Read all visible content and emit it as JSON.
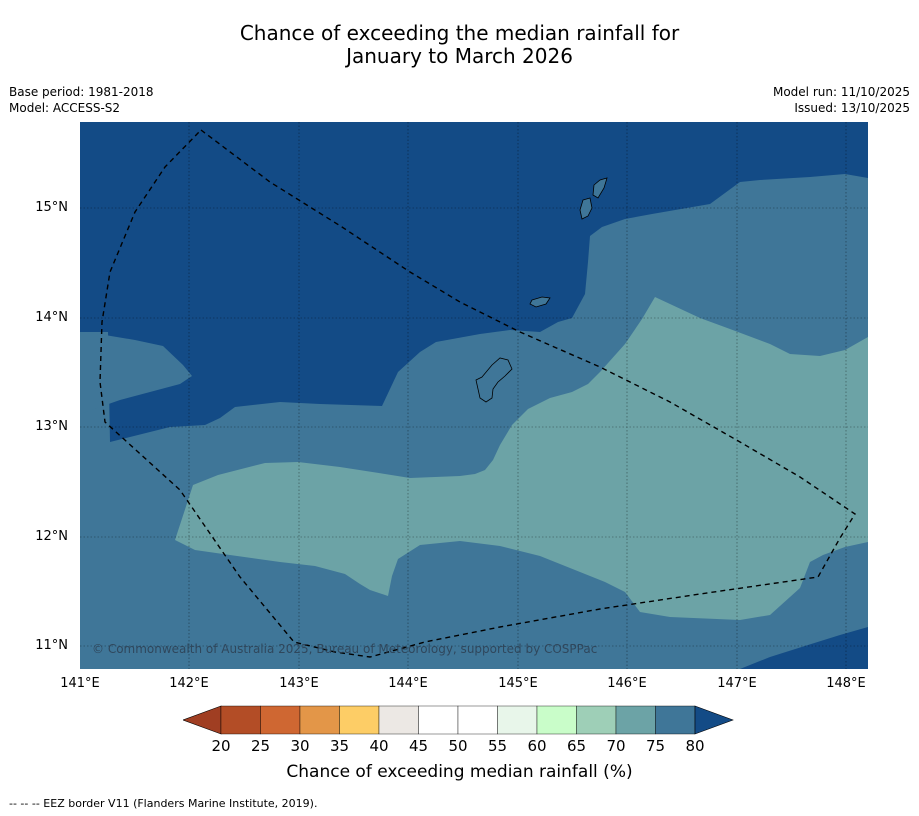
{
  "title_line1": "Chance of exceeding the median rainfall for",
  "title_line2": "January to March 2026",
  "meta_left": {
    "base_period": "Base period: 1981-2018",
    "model": "Model: ACCESS-S2"
  },
  "meta_right": {
    "model_run": "Model run: 11/10/2025",
    "issued": "Issued: 13/10/2025"
  },
  "map": {
    "lat_labels": [
      "15°N",
      "14°N",
      "13°N",
      "12°N",
      "11°N"
    ],
    "lon_labels": [
      "141°E",
      "142°E",
      "143°E",
      "144°E",
      "145°E",
      "146°E",
      "147°E",
      "148°E"
    ],
    "copyright": "© Commonwealth of Australia 2025, Bureau of Meteorology, supported by COSPPac",
    "colors": {
      "dark_blue": "#134b86",
      "mid_blue": "#3f7698",
      "teal": "#6ca3a6"
    }
  },
  "colorbar": {
    "ticks": [
      "20",
      "25",
      "30",
      "35",
      "40",
      "45",
      "50",
      "55",
      "60",
      "65",
      "70",
      "75",
      "80"
    ],
    "colors": [
      "#a03e22",
      "#b34d26",
      "#cf6732",
      "#e39648",
      "#fdcd66",
      "#ece8e4",
      "#ffffff",
      "#ffffff",
      "#e8f6ea",
      "#c9fdc9",
      "#9ecfb7",
      "#6ca3a6",
      "#3f7698",
      "#134b86"
    ],
    "label": "Chance of exceeding median rainfall (%)"
  },
  "footnote": "--  --  -- EEZ border V11 (Flanders Marine Institute, 2019)."
}
